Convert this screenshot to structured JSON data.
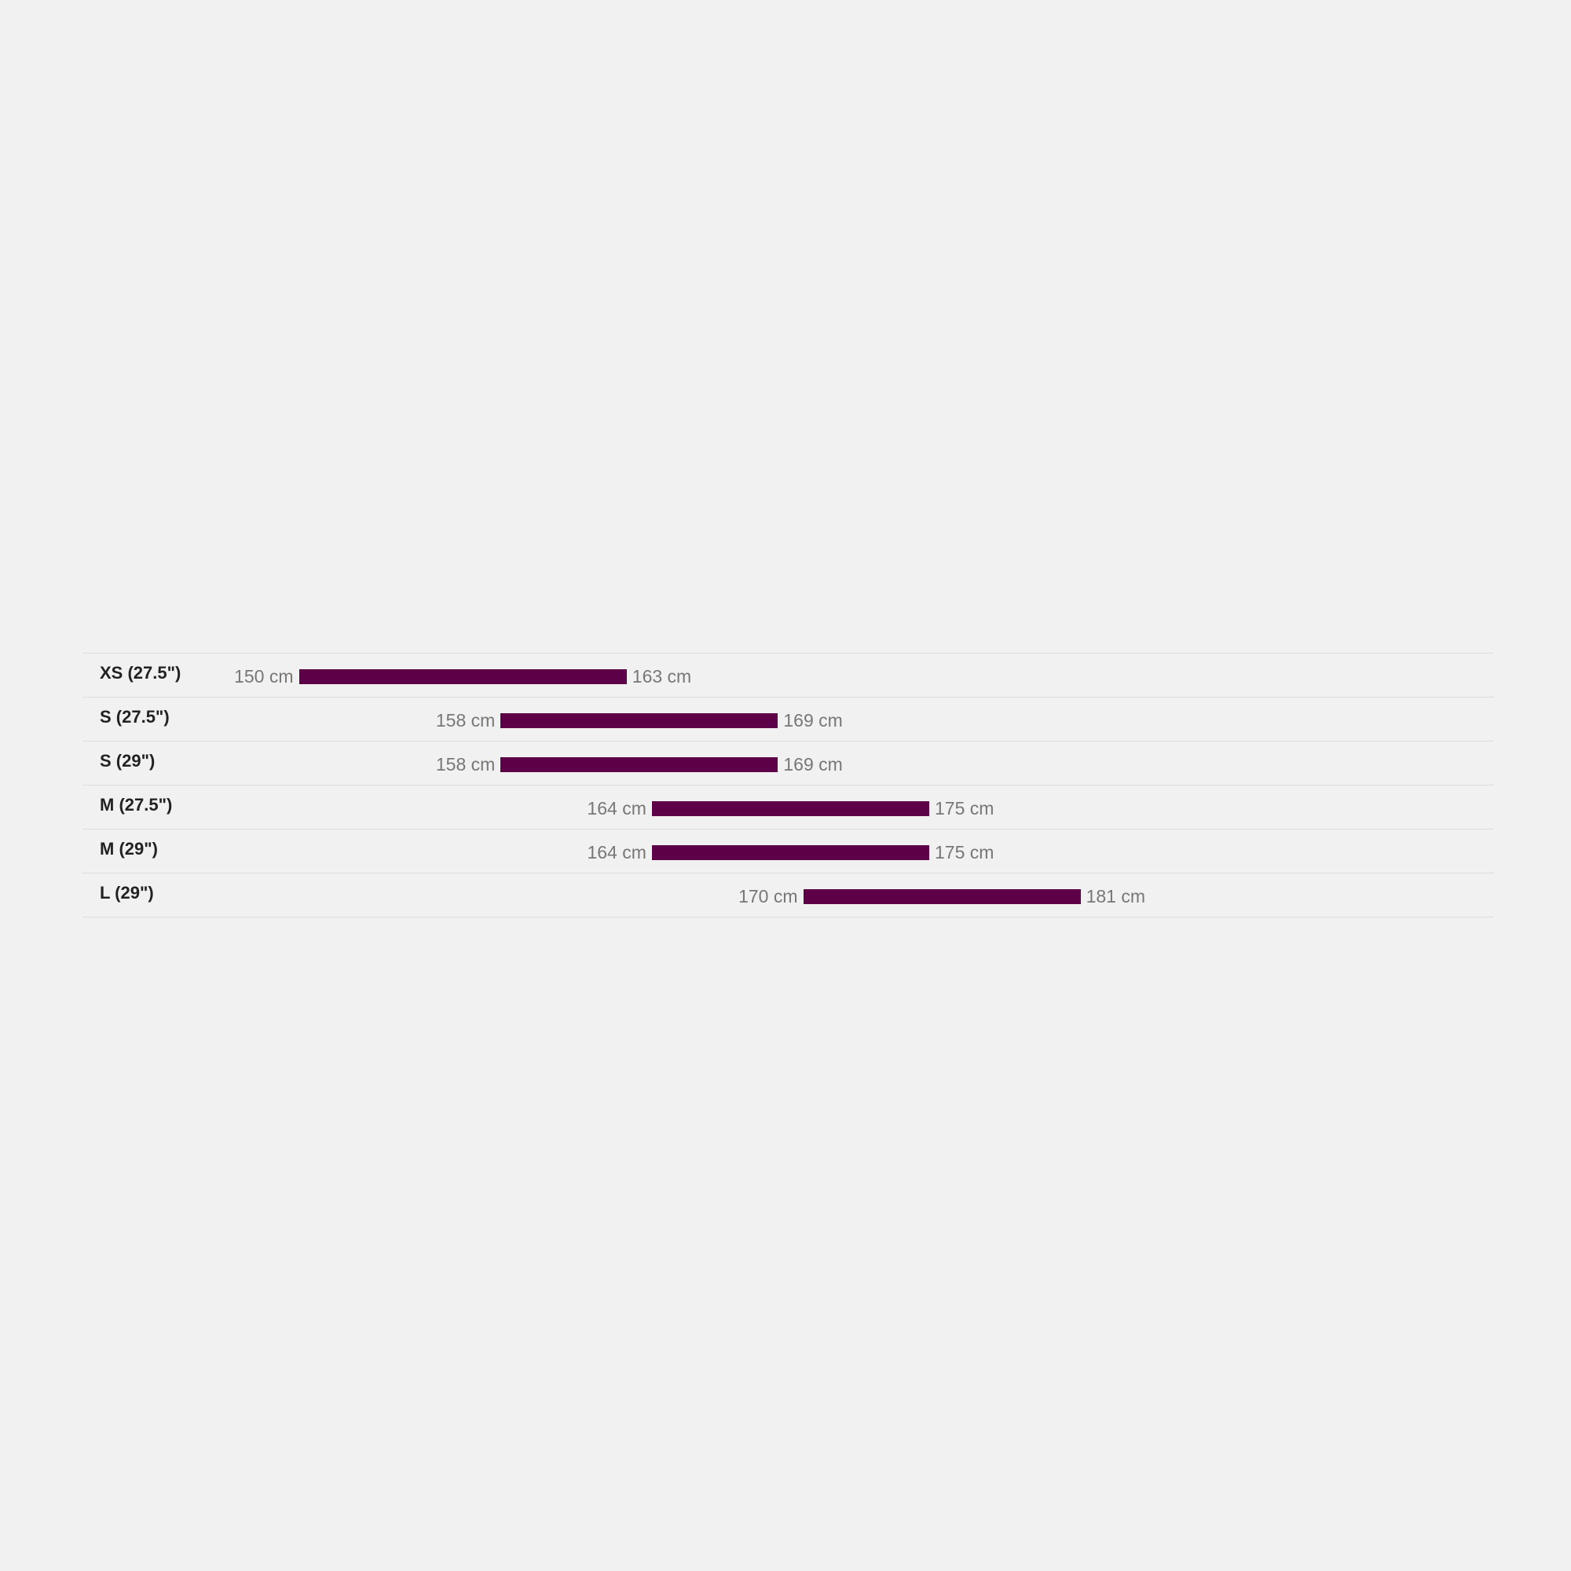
{
  "chart_data": {
    "type": "bar",
    "subtype": "range",
    "categories": [
      "XS (27.5\")",
      "S (27.5\")",
      "S (29\")",
      "M (27.5\")",
      "M (29\")",
      "L (29\")"
    ],
    "ranges": [
      {
        "min": 150,
        "max": 163,
        "min_label": "150 cm",
        "max_label": "163 cm"
      },
      {
        "min": 158,
        "max": 169,
        "min_label": "158 cm",
        "max_label": "169 cm"
      },
      {
        "min": 158,
        "max": 169,
        "min_label": "158 cm",
        "max_label": "169 cm"
      },
      {
        "min": 164,
        "max": 175,
        "min_label": "164 cm",
        "max_label": "175 cm"
      },
      {
        "min": 164,
        "max": 175,
        "min_label": "164 cm",
        "max_label": "175 cm"
      },
      {
        "min": 170,
        "max": 181,
        "min_label": "170 cm",
        "max_label": "181 cm"
      }
    ],
    "unit": "cm",
    "orientation": "horizontal",
    "bar_color": "#5e0047",
    "grid": false
  }
}
